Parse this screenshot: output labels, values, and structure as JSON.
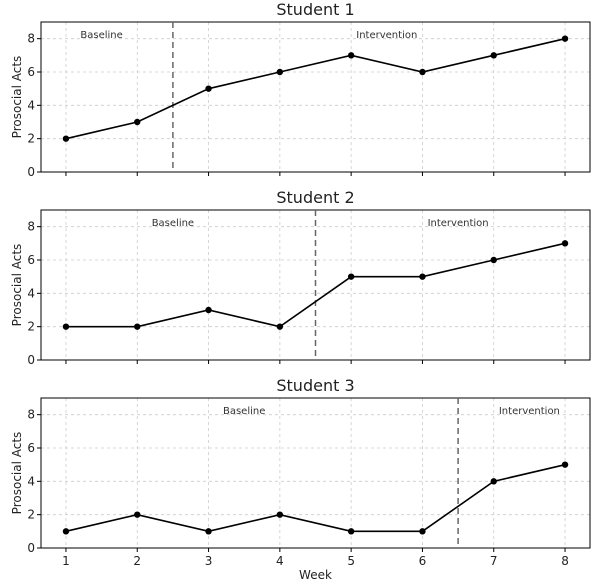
{
  "chart_data": [
    {
      "type": "line",
      "title": "Student 1",
      "ylabel": "Prosocial Acts",
      "xlabel": "",
      "x": [
        1,
        2,
        3,
        4,
        5,
        6,
        7,
        8
      ],
      "values": [
        2,
        3,
        5,
        6,
        7,
        6,
        7,
        8
      ],
      "ylim": [
        0,
        9
      ],
      "yticks": [
        0,
        2,
        4,
        6,
        8
      ],
      "phase_change_x": 2.5,
      "phases": [
        {
          "label": "Baseline",
          "x": 1.5
        },
        {
          "label": "Intervention",
          "x": 5.5
        }
      ],
      "grid": true
    },
    {
      "type": "line",
      "title": "Student 2",
      "ylabel": "Prosocial Acts",
      "xlabel": "",
      "x": [
        1,
        2,
        3,
        4,
        5,
        6,
        7,
        8
      ],
      "values": [
        2,
        2,
        3,
        2,
        5,
        5,
        6,
        7
      ],
      "ylim": [
        0,
        9
      ],
      "yticks": [
        0,
        2,
        4,
        6,
        8
      ],
      "phase_change_x": 4.5,
      "phases": [
        {
          "label": "Baseline",
          "x": 2.5
        },
        {
          "label": "Intervention",
          "x": 6.5
        }
      ],
      "grid": true
    },
    {
      "type": "line",
      "title": "Student 3",
      "ylabel": "Prosocial Acts",
      "xlabel": "Week",
      "x": [
        1,
        2,
        3,
        4,
        5,
        6,
        7,
        8
      ],
      "values": [
        1,
        2,
        1,
        2,
        1,
        1,
        4,
        5
      ],
      "ylim": [
        0,
        9
      ],
      "yticks": [
        0,
        2,
        4,
        6,
        8
      ],
      "phase_change_x": 6.5,
      "phases": [
        {
          "label": "Baseline",
          "x": 3.5
        },
        {
          "label": "Intervention",
          "x": 7.5
        }
      ],
      "grid": true
    }
  ],
  "x_ticks": [
    "1",
    "2",
    "3",
    "4",
    "5",
    "6",
    "7",
    "8"
  ]
}
